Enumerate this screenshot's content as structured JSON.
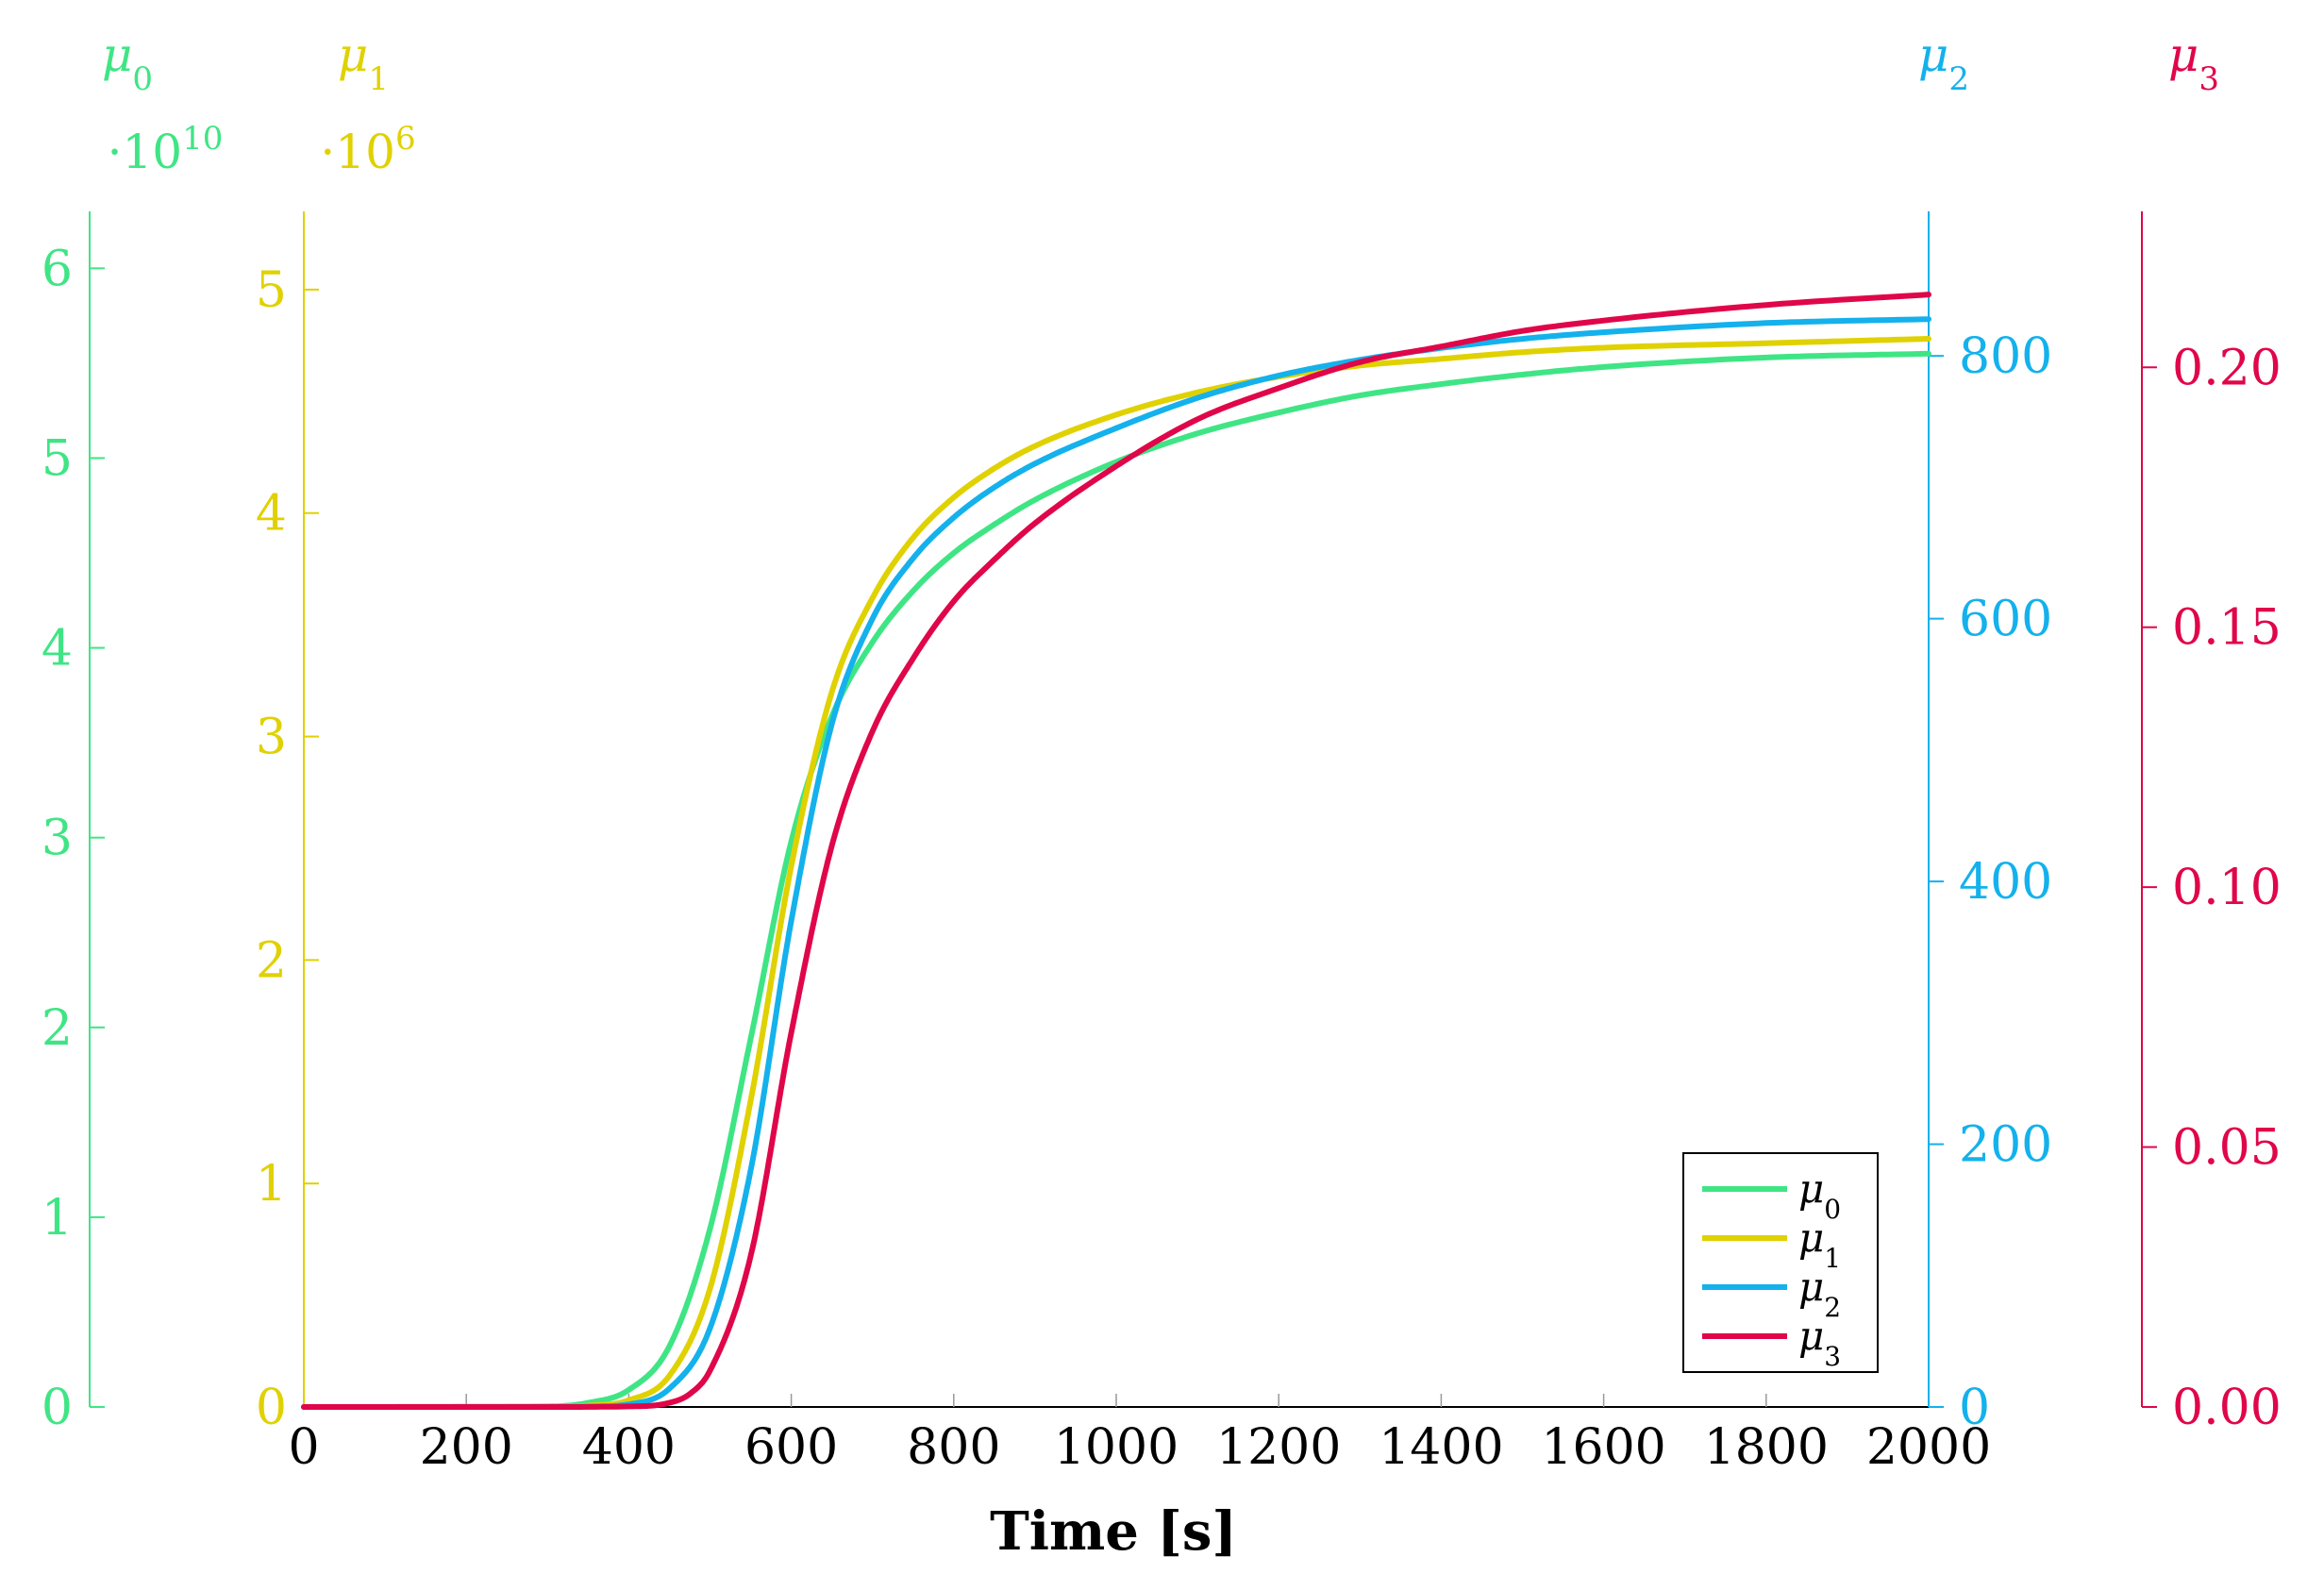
{
  "chart_data": {
    "type": "line",
    "xlabel": "Time [s]",
    "xlim": [
      0,
      2000
    ],
    "xticks": [
      "0",
      "200",
      "400",
      "600",
      "800",
      "1000",
      "1200",
      "1400",
      "1600",
      "1800",
      "2000"
    ],
    "axes": [
      {
        "id": "mu0",
        "title_base": "μ",
        "title_sub": "0",
        "exponent_prefix": "·10",
        "exponent_power": "10",
        "color": "#3fe584",
        "ylim": [
          0,
          6.3
        ],
        "ticks": [
          "0",
          "1",
          "2",
          "3",
          "4",
          "5",
          "6"
        ],
        "tick_values": [
          0,
          1,
          2,
          3,
          4,
          5,
          6
        ],
        "side": "left-outer"
      },
      {
        "id": "mu1",
        "title_base": "μ",
        "title_sub": "1",
        "exponent_prefix": "·10",
        "exponent_power": "6",
        "color": "#e0d100",
        "ylim": [
          0,
          5.35
        ],
        "ticks": [
          "0",
          "1",
          "2",
          "3",
          "4",
          "5"
        ],
        "tick_values": [
          0,
          1,
          2,
          3,
          4,
          5
        ],
        "side": "left-inner"
      },
      {
        "id": "mu2",
        "title_base": "μ",
        "title_sub": "2",
        "color": "#14b1ec",
        "ylim": [
          0,
          910
        ],
        "ticks": [
          "0",
          "200",
          "400",
          "600",
          "800"
        ],
        "tick_values": [
          0,
          200,
          400,
          600,
          800
        ],
        "side": "right-inner"
      },
      {
        "id": "mu3",
        "title_base": "μ",
        "title_sub": "3",
        "color": "#e0064a",
        "ylim": [
          0,
          0.23
        ],
        "ticks": [
          "0.00",
          "0.05",
          "0.10",
          "0.15",
          "0.20"
        ],
        "tick_values": [
          0,
          0.05,
          0.1,
          0.15,
          0.2
        ],
        "side": "right-outer"
      }
    ],
    "series": [
      {
        "name_base": "μ",
        "name_sub": "0",
        "axis": "mu0",
        "color": "#3fe584",
        "x": [
          0,
          300,
          350,
          400,
          450,
          500,
          550,
          600,
          650,
          700,
          750,
          800,
          850,
          900,
          1000,
          1100,
          1200,
          1300,
          1400,
          1500,
          1600,
          1800,
          2000
        ],
        "y": [
          0,
          0.003,
          0.022,
          0.09,
          0.32,
          0.94,
          1.94,
          2.98,
          3.64,
          4.03,
          4.3,
          4.5,
          4.65,
          4.78,
          4.98,
          5.13,
          5.24,
          5.33,
          5.39,
          5.44,
          5.48,
          5.53,
          5.55
        ]
      },
      {
        "name_base": "μ",
        "name_sub": "1",
        "axis": "mu1",
        "color": "#e0d100",
        "x": [
          0,
          300,
          350,
          400,
          450,
          500,
          550,
          600,
          650,
          700,
          750,
          800,
          850,
          900,
          1000,
          1100,
          1200,
          1300,
          1400,
          1500,
          1600,
          1800,
          2000
        ],
        "y": [
          0,
          0.0,
          0.006,
          0.03,
          0.14,
          0.53,
          1.37,
          2.42,
          3.2,
          3.62,
          3.89,
          4.07,
          4.2,
          4.3,
          4.44,
          4.54,
          4.61,
          4.66,
          4.69,
          4.72,
          4.74,
          4.76,
          4.78
        ]
      },
      {
        "name_base": "μ",
        "name_sub": "2",
        "axis": "mu2",
        "color": "#14b1ec",
        "x": [
          0,
          300,
          350,
          400,
          450,
          500,
          550,
          600,
          650,
          700,
          750,
          800,
          850,
          900,
          1000,
          1100,
          1200,
          1300,
          1400,
          1500,
          1600,
          1800,
          2000
        ],
        "y": [
          0,
          0,
          0.3,
          2,
          14,
          60,
          180,
          370,
          520,
          600,
          646,
          677,
          700,
          718,
          745,
          768,
          785,
          797,
          806,
          813,
          818,
          825,
          828
        ]
      },
      {
        "name_base": "μ",
        "name_sub": "3",
        "axis": "mu3",
        "color": "#e0064a",
        "x": [
          0,
          300,
          400,
          450,
          475,
          500,
          550,
          600,
          650,
          700,
          750,
          800,
          850,
          900,
          1000,
          1100,
          1200,
          1300,
          1400,
          1500,
          1600,
          1800,
          2000
        ],
        "y": [
          0,
          0,
          0.0001,
          0.0008,
          0.0025,
          0.007,
          0.029,
          0.072,
          0.108,
          0.13,
          0.144,
          0.155,
          0.163,
          0.17,
          0.181,
          0.19,
          0.196,
          0.201,
          0.204,
          0.207,
          0.209,
          0.212,
          0.214
        ]
      }
    ],
    "legend_position": "bottom-right",
    "grid": false
  }
}
